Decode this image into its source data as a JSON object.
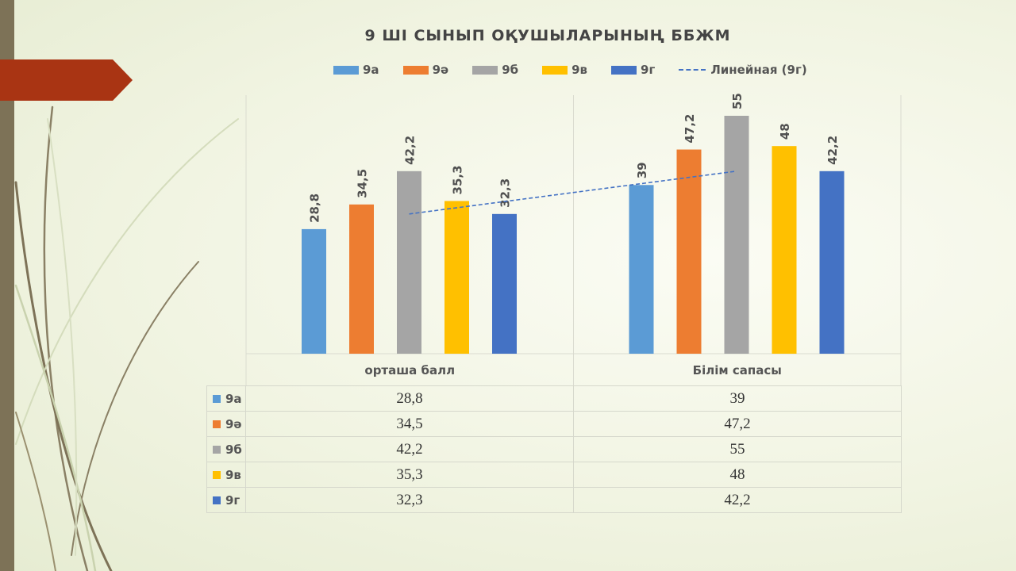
{
  "chart_data": {
    "type": "bar",
    "title": "9 ШІ СЫНЫП ОҚУШЫЛАРЫНЫҢ ББЖМ",
    "categories": [
      "орташа балл",
      "Білім сапасы"
    ],
    "series": [
      {
        "name": "9а",
        "color": "#5b9bd5",
        "values": [
          28.8,
          39
        ],
        "labels": [
          "28,8",
          "39"
        ]
      },
      {
        "name": "9ә",
        "color": "#ed7d31",
        "values": [
          34.5,
          47.2
        ],
        "labels": [
          "34,5",
          "47,2"
        ]
      },
      {
        "name": "9б",
        "color": "#a5a5a5",
        "values": [
          42.2,
          55
        ],
        "labels": [
          "42,2",
          "55"
        ]
      },
      {
        "name": "9в",
        "color": "#ffc000",
        "values": [
          35.3,
          48
        ],
        "labels": [
          "35,3",
          "48"
        ]
      },
      {
        "name": "9г",
        "color": "#4472c4",
        "values": [
          32.3,
          42.2
        ],
        "labels": [
          "32,3",
          "42,2"
        ]
      }
    ],
    "trendline": {
      "name": "Линейная (9г)",
      "color": "#4472c4",
      "style": "dashed",
      "series": "9г"
    },
    "ylim": [
      0,
      55
    ],
    "legend_position": "top",
    "data_table": true,
    "data_labels_rotated": true
  }
}
